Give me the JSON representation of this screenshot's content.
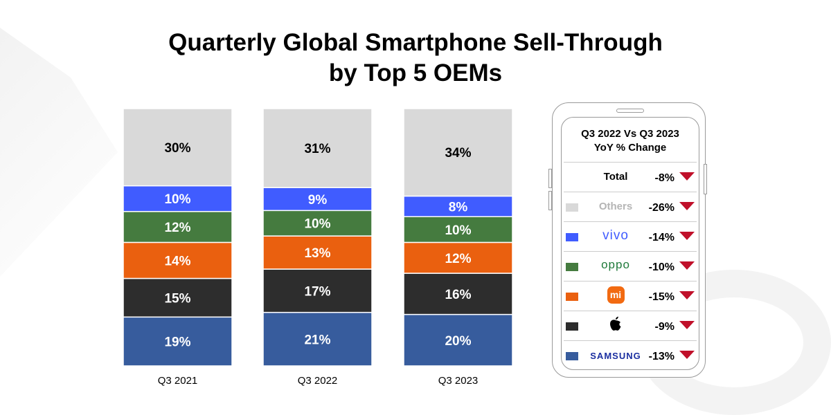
{
  "title_line1": "Quarterly Global Smartphone Sell-Through",
  "title_line2": "by Top 5 OEMs",
  "chart_data": {
    "type": "stacked-bar",
    "categories": [
      "Q3 2021",
      "Q3 2022",
      "Q3 2023"
    ],
    "series": [
      {
        "name": "Samsung",
        "color": "#375c9d",
        "values": [
          19,
          21,
          20
        ]
      },
      {
        "name": "Apple",
        "color": "#2d2d2d",
        "values": [
          15,
          17,
          16
        ]
      },
      {
        "name": "Xiaomi",
        "color": "#ea600f",
        "values": [
          14,
          13,
          12
        ]
      },
      {
        "name": "OPPO",
        "color": "#457b3f",
        "values": [
          12,
          10,
          10
        ]
      },
      {
        "name": "vivo",
        "color": "#405cff",
        "values": [
          10,
          9,
          8
        ]
      },
      {
        "name": "Others",
        "color": "#d9d9d9",
        "values": [
          30,
          31,
          34
        ]
      }
    ],
    "ylim": [
      0,
      100
    ],
    "unit": "%"
  },
  "panel": {
    "title_line1": "Q3 2022 Vs Q3 2023",
    "title_line2": "YoY % Change",
    "rows": [
      {
        "label": "Total",
        "value": "-8%",
        "color": "",
        "direction": "down"
      },
      {
        "label": "Others",
        "value": "-26%",
        "color": "#d9d9d9",
        "direction": "down"
      },
      {
        "label": "vivo",
        "value": "-14%",
        "color": "#405cff",
        "direction": "down"
      },
      {
        "label": "oppo",
        "value": "-10%",
        "color": "#457b3f",
        "direction": "down"
      },
      {
        "label": "mi",
        "value": "-15%",
        "color": "#ea600f",
        "direction": "down"
      },
      {
        "label": "apple-icon",
        "value": "-9%",
        "color": "#2d2d2d",
        "direction": "down"
      },
      {
        "label": "SAMSUNG",
        "value": "-13%",
        "color": "#375c9d",
        "direction": "down"
      }
    ]
  }
}
